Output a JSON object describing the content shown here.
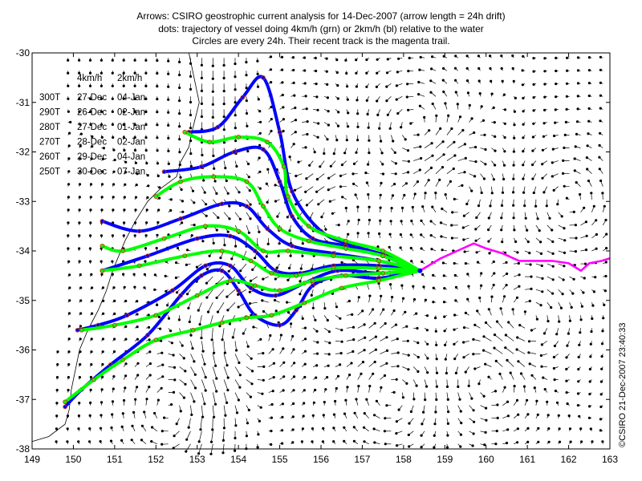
{
  "title_lines": [
    "Arrows: CSIRO geostrophic current analysis for 14-Dec-2007 (arrow length = 24h drift)",
    "dots: trajectory of vessel doing 4km/h (grn) or 2km/h (bl) relative to the water",
    "Circles are every 24h. Their recent track is the magenta trail."
  ],
  "credit": "©CSIRO 21-Dec-2007 23:40:33",
  "table": {
    "headers": [
      "4km/h",
      "2km/h"
    ],
    "rows": [
      {
        "heading": "300T",
        "arr4": "27-Dec",
        "arr2": "04-Jan"
      },
      {
        "heading": "290T",
        "arr4": "26-Dec",
        "arr2": "02-Jan"
      },
      {
        "heading": "280T",
        "arr4": "27-Dec",
        "arr2": "01-Jan"
      },
      {
        "heading": "270T",
        "arr4": "28-Dec",
        "arr2": "02-Jan"
      },
      {
        "heading": "260T",
        "arr4": "29-Dec",
        "arr2": "04-Jan"
      },
      {
        "heading": "250T",
        "arr4": "30-Dec",
        "arr2": "07-Jan"
      }
    ]
  },
  "map": {
    "lon_range": [
      149,
      163
    ],
    "lat_range": [
      -38,
      -30
    ],
    "x_ticks": [
      "149",
      "150",
      "151",
      "152",
      "153",
      "154",
      "155",
      "156",
      "157",
      "158",
      "159",
      "160",
      "161",
      "162",
      "163"
    ],
    "y_ticks": [
      "-30",
      "-31",
      "-32",
      "-33",
      "-34",
      "-35",
      "-36",
      "-37",
      "-38"
    ],
    "colors": {
      "fast_track": "#00ff00",
      "slow_track": "#0000ff",
      "recent_trail": "#ff00ff",
      "daily_circle": "#cc3300",
      "arrows": "#000000"
    },
    "vessel_position": [
      158.4,
      -34.4
    ],
    "recent_trail": [
      [
        158.4,
        -34.4
      ],
      [
        158.9,
        -34.15
      ],
      [
        159.3,
        -34.0
      ],
      [
        159.7,
        -33.85
      ],
      [
        160.0,
        -33.95
      ],
      [
        160.4,
        -34.05
      ],
      [
        160.8,
        -34.2
      ],
      [
        161.2,
        -34.2
      ],
      [
        161.6,
        -34.2
      ],
      [
        162.0,
        -34.25
      ],
      [
        162.3,
        -34.4
      ],
      [
        162.5,
        -34.25
      ],
      [
        162.8,
        -34.2
      ],
      [
        163.0,
        -34.15
      ]
    ],
    "tracks": [
      {
        "heading": "300T",
        "speed": "2km/h",
        "points": [
          [
            158.4,
            -34.4
          ],
          [
            157.6,
            -34.1
          ],
          [
            156.8,
            -33.9
          ],
          [
            156.0,
            -33.6
          ],
          [
            155.3,
            -32.8
          ],
          [
            155.0,
            -31.6
          ],
          [
            154.6,
            -30.5
          ],
          [
            154.1,
            -30.9
          ],
          [
            153.5,
            -31.5
          ],
          [
            152.8,
            -31.6
          ]
        ]
      },
      {
        "heading": "300T",
        "speed": "4km/h",
        "points": [
          [
            158.4,
            -34.4
          ],
          [
            157.5,
            -34.0
          ],
          [
            156.6,
            -33.8
          ],
          [
            155.7,
            -33.5
          ],
          [
            155.2,
            -32.9
          ],
          [
            155.1,
            -32.3
          ],
          [
            154.7,
            -31.8
          ],
          [
            154.0,
            -31.7
          ],
          [
            153.3,
            -31.8
          ],
          [
            152.7,
            -31.6
          ]
        ]
      },
      {
        "heading": "290T",
        "speed": "2km/h",
        "points": [
          [
            158.4,
            -34.4
          ],
          [
            157.5,
            -34.1
          ],
          [
            156.6,
            -33.9
          ],
          [
            155.8,
            -33.75
          ],
          [
            155.3,
            -33.3
          ],
          [
            155.0,
            -32.6
          ],
          [
            154.6,
            -31.95
          ],
          [
            153.9,
            -32.0
          ],
          [
            153.1,
            -32.3
          ],
          [
            152.2,
            -32.4
          ]
        ]
      },
      {
        "heading": "290T",
        "speed": "4km/h",
        "points": [
          [
            158.4,
            -34.4
          ],
          [
            157.5,
            -34.1
          ],
          [
            156.6,
            -33.95
          ],
          [
            155.7,
            -33.8
          ],
          [
            155.0,
            -33.55
          ],
          [
            154.6,
            -33.1
          ],
          [
            154.2,
            -32.6
          ],
          [
            153.4,
            -32.5
          ],
          [
            152.6,
            -32.6
          ],
          [
            152.0,
            -32.9
          ]
        ]
      },
      {
        "heading": "280T",
        "speed": "2km/h",
        "points": [
          [
            158.4,
            -34.4
          ],
          [
            157.4,
            -34.2
          ],
          [
            156.3,
            -34.05
          ],
          [
            155.3,
            -33.9
          ],
          [
            154.7,
            -33.55
          ],
          [
            154.2,
            -33.1
          ],
          [
            153.6,
            -33.05
          ],
          [
            152.6,
            -33.35
          ],
          [
            151.6,
            -33.6
          ],
          [
            150.7,
            -33.4
          ]
        ]
      },
      {
        "heading": "280T",
        "speed": "4km/h",
        "points": [
          [
            158.4,
            -34.4
          ],
          [
            157.4,
            -34.2
          ],
          [
            156.3,
            -34.1
          ],
          [
            155.2,
            -34.0
          ],
          [
            154.6,
            -34.0
          ],
          [
            154.0,
            -33.6
          ],
          [
            153.2,
            -33.5
          ],
          [
            152.2,
            -33.75
          ],
          [
            151.2,
            -34.0
          ],
          [
            150.7,
            -33.9
          ]
        ]
      },
      {
        "heading": "270T",
        "speed": "2km/h",
        "points": [
          [
            158.4,
            -34.4
          ],
          [
            157.4,
            -34.3
          ],
          [
            156.3,
            -34.3
          ],
          [
            155.5,
            -34.45
          ],
          [
            154.9,
            -34.4
          ],
          [
            154.4,
            -34.0
          ],
          [
            153.8,
            -33.7
          ],
          [
            153.0,
            -33.75
          ],
          [
            151.8,
            -34.1
          ],
          [
            150.7,
            -34.4
          ]
        ]
      },
      {
        "heading": "270T",
        "speed": "4km/h",
        "points": [
          [
            158.4,
            -34.4
          ],
          [
            157.4,
            -34.35
          ],
          [
            156.3,
            -34.35
          ],
          [
            155.4,
            -34.5
          ],
          [
            154.8,
            -34.45
          ],
          [
            154.3,
            -34.2
          ],
          [
            153.6,
            -34.0
          ],
          [
            152.7,
            -34.1
          ],
          [
            151.6,
            -34.3
          ],
          [
            150.7,
            -34.4
          ]
        ]
      },
      {
        "heading": "260T",
        "speed": "2km/h",
        "points": [
          [
            158.4,
            -34.4
          ],
          [
            157.4,
            -34.45
          ],
          [
            156.4,
            -34.4
          ],
          [
            155.6,
            -34.65
          ],
          [
            154.9,
            -34.9
          ],
          [
            154.3,
            -34.75
          ],
          [
            153.8,
            -34.3
          ],
          [
            153.2,
            -34.3
          ],
          [
            152.4,
            -34.8
          ],
          [
            151.3,
            -35.3
          ],
          [
            150.6,
            -35.5
          ],
          [
            150.1,
            -35.6
          ]
        ]
      },
      {
        "heading": "260T",
        "speed": "4km/h",
        "points": [
          [
            158.4,
            -34.4
          ],
          [
            157.5,
            -34.45
          ],
          [
            156.6,
            -34.5
          ],
          [
            155.8,
            -34.6
          ],
          [
            155.0,
            -34.8
          ],
          [
            154.4,
            -34.7
          ],
          [
            153.8,
            -34.6
          ],
          [
            153.0,
            -34.9
          ],
          [
            152.0,
            -35.3
          ],
          [
            151.0,
            -35.5
          ],
          [
            150.2,
            -35.6
          ]
        ]
      },
      {
        "heading": "250T",
        "speed": "2km/h",
        "points": [
          [
            158.4,
            -34.4
          ],
          [
            157.4,
            -34.55
          ],
          [
            156.5,
            -34.5
          ],
          [
            155.8,
            -34.7
          ],
          [
            155.4,
            -35.2
          ],
          [
            155.0,
            -35.5
          ],
          [
            154.4,
            -35.3
          ],
          [
            154.0,
            -34.8
          ],
          [
            153.6,
            -34.4
          ],
          [
            153.1,
            -34.5
          ],
          [
            152.6,
            -34.9
          ],
          [
            151.8,
            -35.7
          ],
          [
            150.9,
            -36.3
          ],
          [
            150.2,
            -36.8
          ],
          [
            149.8,
            -37.15
          ]
        ]
      },
      {
        "heading": "250T",
        "speed": "4km/h",
        "points": [
          [
            158.4,
            -34.4
          ],
          [
            157.4,
            -34.6
          ],
          [
            156.5,
            -34.75
          ],
          [
            155.6,
            -35.05
          ],
          [
            154.8,
            -35.3
          ],
          [
            154.2,
            -35.35
          ],
          [
            153.6,
            -35.45
          ],
          [
            152.9,
            -35.6
          ],
          [
            152.0,
            -35.8
          ],
          [
            151.2,
            -36.2
          ],
          [
            150.5,
            -36.6
          ],
          [
            149.8,
            -37.05
          ]
        ]
      }
    ]
  }
}
